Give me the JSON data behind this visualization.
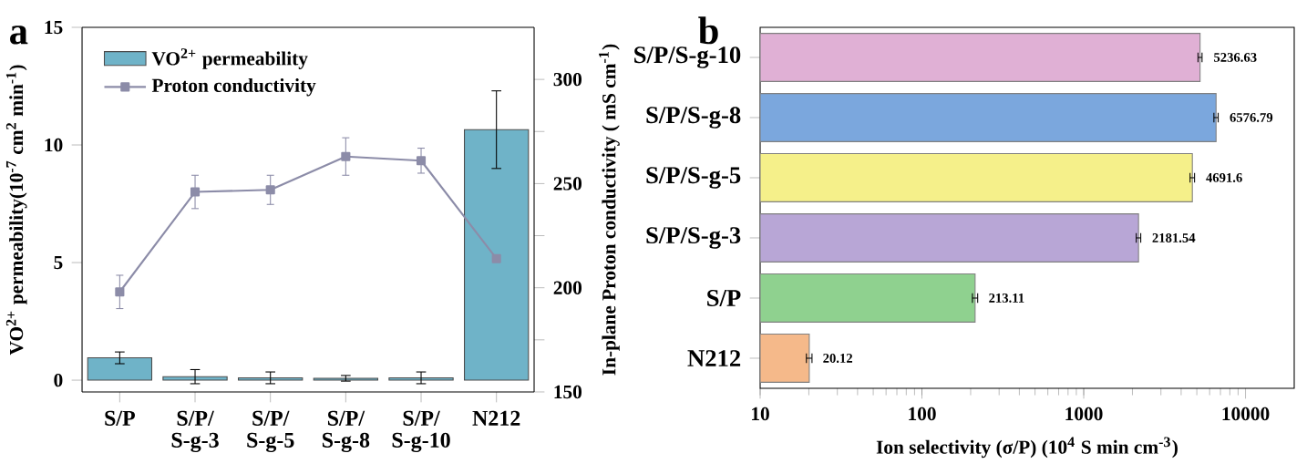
{
  "chart_data": [
    {
      "type": "bar",
      "categories": [
        "S/P",
        "S/P/ S-g-3",
        "S/P/ S-g-5",
        "S/P/ S-g-8",
        "S/P/ S-g-10",
        "N212"
      ],
      "ylabel": "VO$^{2+}$ permeability(10$^{-7}$ cm$^{2}$ min$^{-1}$)",
      "y2label": "In-plane Proton conductivity ( mS cm$^{-1}$)",
      "ylim": [
        -0.5,
        15
      ],
      "yticks": [
        0,
        5,
        10,
        15
      ],
      "y2lim": [
        150,
        325
      ],
      "y2ticks": [
        150,
        {
          "value": 175,
          "label": null
        },
        200,
        {
          "value": 225,
          "label": null
        },
        250,
        {
          "value": 275,
          "label": null
        },
        300
      ],
      "legend": "top left",
      "marker": "square",
      "annotations": [
        "a"
      ],
      "series": [
        {
          "name": "VO$^{2+}$ permeability",
          "type": "bar",
          "color": "#6fb3c8",
          "values": [
            0.95,
            0.15,
            0.1,
            0.08,
            0.1,
            10.65
          ],
          "errors": [
            0.25,
            0.3,
            0.25,
            0.12,
            0.25,
            1.65
          ]
        },
        {
          "name": "Proton conductivity",
          "type": "line",
          "axis": "y2",
          "color": "#8c8ca8",
          "values": [
            198,
            246,
            247,
            263,
            261,
            214
          ],
          "errors": [
            8,
            8,
            7,
            9,
            6,
            null
          ]
        }
      ]
    },
    {
      "type": "bar",
      "orientation": "horizontal",
      "log": "x",
      "categories": [
        "S/P/S-g-10",
        "S/P/S-g-8",
        "S/P/S-g-5",
        "S/P/S-g-3",
        "S/P",
        "N212"
      ],
      "values": [
        5236.63,
        6576.79,
        4691.6,
        2181.54,
        213.11,
        20.12
      ],
      "errors": [
        150,
        200,
        150,
        70,
        8,
        0.8
      ],
      "colors": [
        "#e0b0d5",
        "#7ba7dd",
        "#f5f08a",
        "#b8a6d6",
        "#8fd18f",
        "#f5b98a"
      ],
      "data_labels": true,
      "xlim": [
        10,
        20000
      ],
      "xticks": [
        10,
        100,
        1000,
        10000
      ],
      "xlabel": "Ion selectivity (σ/P) (10$^{4}$ S min cm$^{-3}$)",
      "annotations": [
        "b"
      ]
    }
  ]
}
